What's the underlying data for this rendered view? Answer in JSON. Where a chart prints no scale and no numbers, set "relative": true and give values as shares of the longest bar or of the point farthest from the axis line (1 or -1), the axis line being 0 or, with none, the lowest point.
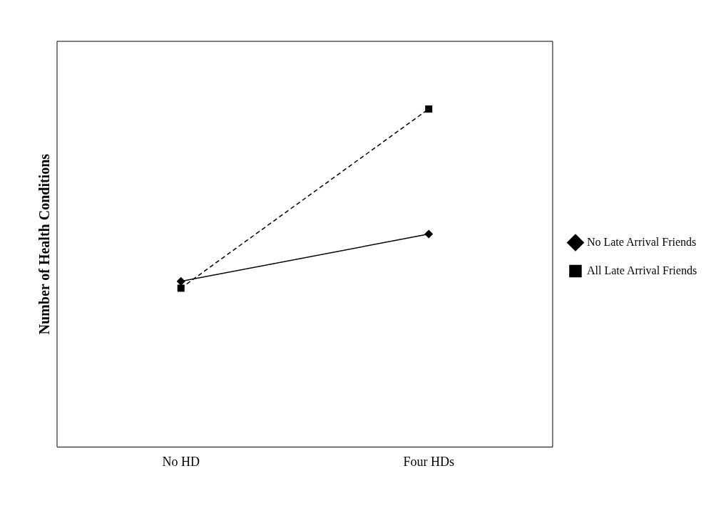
{
  "chart_data": {
    "type": "line",
    "ylabel": "Number of Health Conditions",
    "categories": [
      "No HD",
      "Four HDs"
    ],
    "relative": true,
    "grid": false,
    "legend": "right",
    "series": [
      {
        "name": "No Late Arrival Friends",
        "color": "#000000",
        "values": [
          0.49,
          0.63
        ],
        "marker": "diamond",
        "line_style": "solid"
      },
      {
        "name": "All Late Arrival Friends",
        "color": "#000000",
        "values": [
          0.47,
          1
        ],
        "marker": "square",
        "line_style": "dashed"
      }
    ]
  }
}
